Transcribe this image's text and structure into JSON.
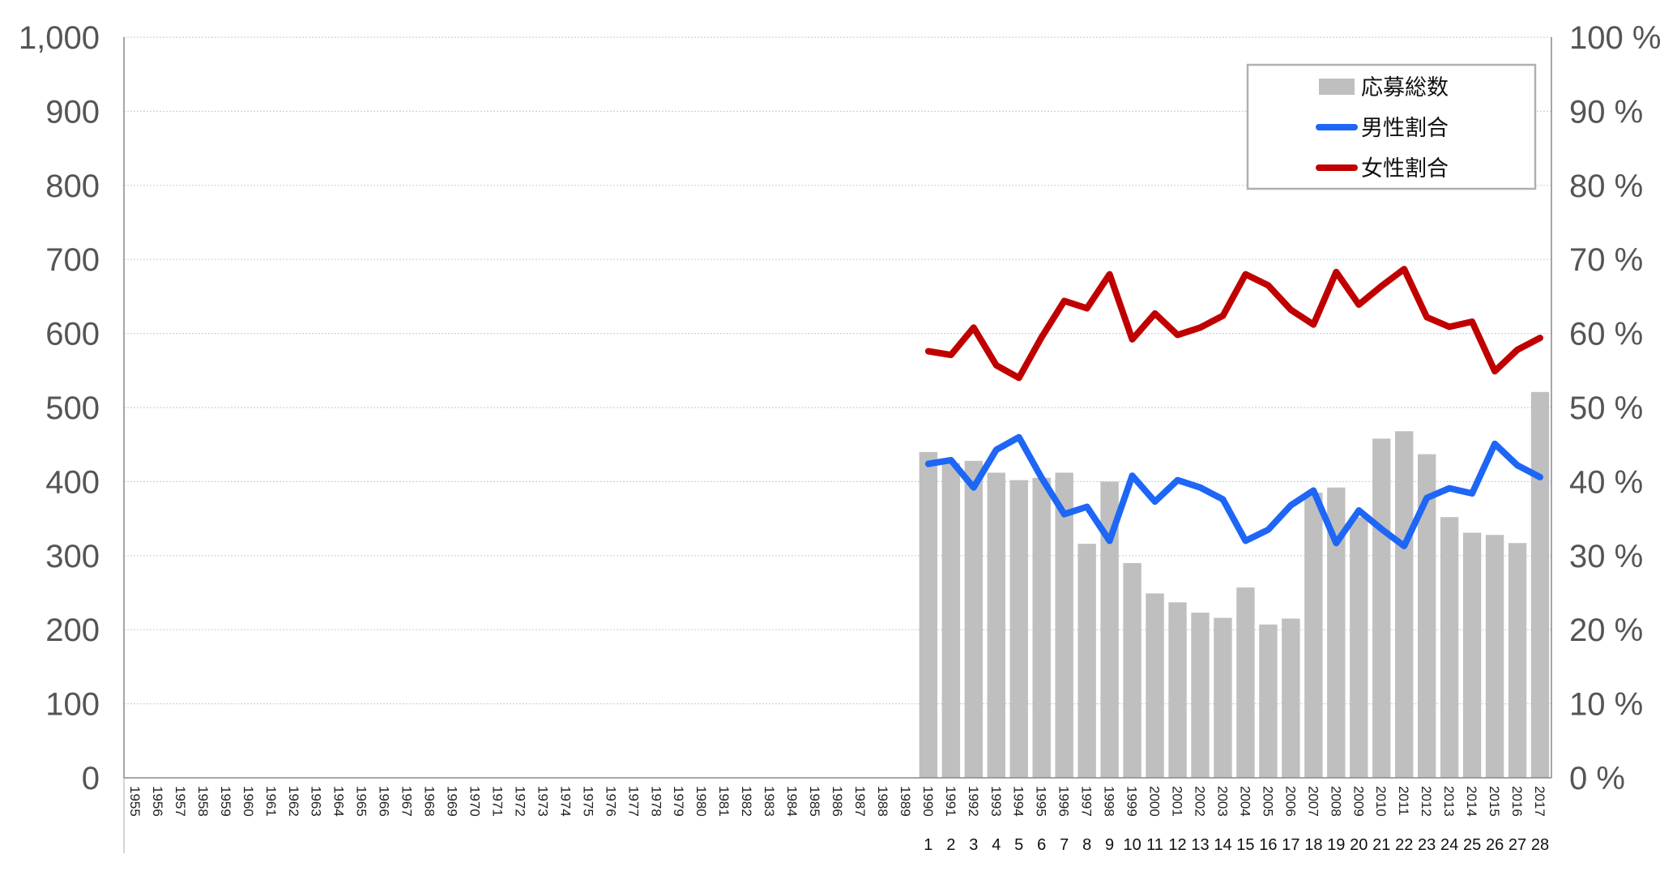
{
  "chart_data": {
    "type": "bar",
    "x": [
      "1955",
      "1956",
      "1957",
      "1958",
      "1959",
      "1960",
      "1961",
      "1962",
      "1963",
      "1964",
      "1965",
      "1966",
      "1967",
      "1968",
      "1969",
      "1970",
      "1971",
      "1972",
      "1973",
      "1974",
      "1975",
      "1976",
      "1977",
      "1978",
      "1979",
      "1980",
      "1981",
      "1982",
      "1983",
      "1984",
      "1985",
      "1986",
      "1987",
      "1988",
      "1989",
      "1990",
      "1991",
      "1992",
      "1993",
      "1994",
      "1995",
      "1996",
      "1997",
      "1998",
      "1999",
      "2000",
      "2001",
      "2002",
      "2003",
      "2004",
      "2005",
      "2006",
      "2007",
      "2008",
      "2009",
      "2010",
      "2011",
      "2012",
      "2013",
      "2014",
      "2015",
      "2016",
      "2017"
    ],
    "x_secondary": [
      "",
      "",
      "",
      "",
      "",
      "",
      "",
      "",
      "",
      "",
      "",
      "",
      "",
      "",
      "",
      "",
      "",
      "",
      "",
      "",
      "",
      "",
      "",
      "",
      "",
      "",
      "",
      "",
      "",
      "",
      "",
      "",
      "",
      "",
      "",
      "1",
      "2",
      "3",
      "4",
      "5",
      "6",
      "7",
      "8",
      "9",
      "10",
      "11",
      "12",
      "13",
      "14",
      "15",
      "16",
      "17",
      "18",
      "19",
      "20",
      "21",
      "22",
      "23",
      "24",
      "25",
      "26",
      "27",
      "28"
    ],
    "series": [
      {
        "name": "応募総数",
        "type": "bar",
        "axis": "left",
        "color": "#bfbfbf",
        "values": [
          null,
          null,
          null,
          null,
          null,
          null,
          null,
          null,
          null,
          null,
          null,
          null,
          null,
          null,
          null,
          null,
          null,
          null,
          null,
          null,
          null,
          null,
          null,
          null,
          null,
          null,
          null,
          null,
          null,
          null,
          null,
          null,
          null,
          null,
          null,
          440,
          425,
          428,
          412,
          402,
          405,
          412,
          316,
          400,
          290,
          249,
          237,
          223,
          216,
          257,
          207,
          215,
          385,
          392,
          352,
          458,
          468,
          437,
          352,
          331,
          328,
          317,
          521
        ]
      },
      {
        "name": "男性割合",
        "type": "line",
        "axis": "right",
        "color": "#1e66f5",
        "values": [
          null,
          null,
          null,
          null,
          null,
          null,
          null,
          null,
          null,
          null,
          null,
          null,
          null,
          null,
          null,
          null,
          null,
          null,
          null,
          null,
          null,
          null,
          null,
          null,
          null,
          null,
          null,
          null,
          null,
          null,
          null,
          null,
          null,
          null,
          null,
          42.4,
          42.9,
          39.2,
          44.3,
          46.0,
          40.5,
          35.6,
          36.6,
          32.0,
          40.8,
          37.3,
          40.2,
          39.2,
          37.6,
          32.0,
          33.5,
          36.8,
          38.8,
          31.7,
          36.1,
          33.6,
          31.3,
          37.8,
          39.1,
          38.4,
          45.1,
          42.2,
          40.6
        ]
      },
      {
        "name": "女性割合",
        "type": "line",
        "axis": "right",
        "color": "#c00000",
        "values": [
          null,
          null,
          null,
          null,
          null,
          null,
          null,
          null,
          null,
          null,
          null,
          null,
          null,
          null,
          null,
          null,
          null,
          null,
          null,
          null,
          null,
          null,
          null,
          null,
          null,
          null,
          null,
          null,
          null,
          null,
          null,
          null,
          null,
          null,
          null,
          57.6,
          57.1,
          60.8,
          55.7,
          54.0,
          59.5,
          64.4,
          63.4,
          68.0,
          59.2,
          62.7,
          59.8,
          60.8,
          62.4,
          68.0,
          66.5,
          63.2,
          61.2,
          68.3,
          63.9,
          66.4,
          68.7,
          62.2,
          60.9,
          61.6,
          54.9,
          57.8,
          59.4
        ]
      }
    ],
    "ylim": [
      0,
      1000
    ],
    "yticks": [
      "0",
      "100",
      "200",
      "300",
      "400",
      "500",
      "600",
      "700",
      "800",
      "900",
      "1,000"
    ],
    "y2lim": [
      0,
      100
    ],
    "y2ticks": [
      "0 %",
      "10 %",
      "20 %",
      "30 %",
      "40 %",
      "50 %",
      "60 %",
      "70 %",
      "80 %",
      "90 %",
      "100 %"
    ],
    "grid": true,
    "legend": "top-right"
  }
}
